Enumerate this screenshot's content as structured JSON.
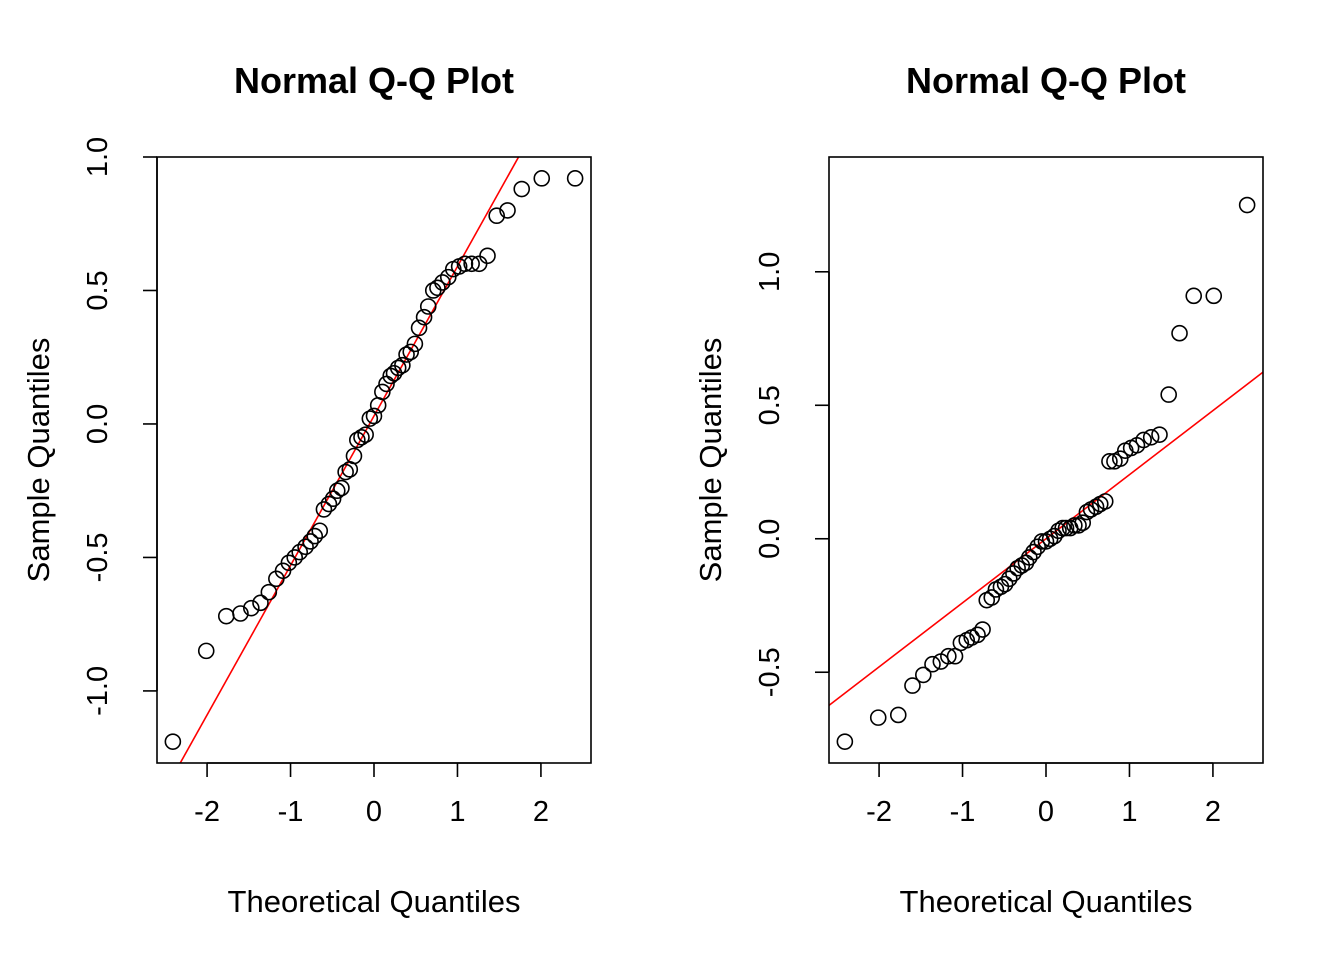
{
  "chart_data": [
    {
      "type": "scatter",
      "title": "Normal Q-Q Plot",
      "xlabel": "Theoretical Quantiles",
      "ylabel": "Sample Quantiles",
      "xlim": [
        -2.6,
        2.6
      ],
      "ylim": [
        -1.27,
        1.0
      ],
      "xticks": [
        -2,
        -1,
        0,
        1,
        2
      ],
      "xtick_labels": [
        "-2",
        "-1",
        "0",
        "1",
        "2"
      ],
      "yticks": [
        -1.0,
        -0.5,
        0.0,
        0.5,
        1.0
      ],
      "ytick_labels": [
        "-1.0",
        "-0.5",
        "0.0",
        "0.5",
        "1.0"
      ],
      "line_color": "#ff0000",
      "qq_line": {
        "intercept": 0.03,
        "slope": 0.56
      },
      "points": {
        "x": [
          -2.41,
          -2.01,
          -1.77,
          -1.6,
          -1.47,
          -1.36,
          -1.26,
          -1.17,
          -1.09,
          -1.02,
          -0.95,
          -0.89,
          -0.82,
          -0.76,
          -0.71,
          -0.65,
          -0.6,
          -0.54,
          -0.49,
          -0.44,
          -0.39,
          -0.34,
          -0.29,
          -0.24,
          -0.2,
          -0.15,
          -0.1,
          -0.05,
          0.0,
          0.05,
          0.1,
          0.15,
          0.2,
          0.24,
          0.29,
          0.34,
          0.39,
          0.44,
          0.49,
          0.54,
          0.6,
          0.65,
          0.71,
          0.76,
          0.82,
          0.89,
          0.95,
          1.02,
          1.09,
          1.17,
          1.26,
          1.36,
          1.47,
          1.6,
          1.77,
          2.01,
          2.41
        ],
        "y": [
          -1.19,
          -0.85,
          -0.72,
          -0.71,
          -0.69,
          -0.67,
          -0.63,
          -0.58,
          -0.55,
          -0.52,
          -0.5,
          -0.48,
          -0.46,
          -0.44,
          -0.42,
          -0.4,
          -0.32,
          -0.3,
          -0.28,
          -0.25,
          -0.24,
          -0.18,
          -0.17,
          -0.12,
          -0.06,
          -0.05,
          -0.04,
          0.02,
          0.03,
          0.07,
          0.12,
          0.15,
          0.18,
          0.19,
          0.21,
          0.22,
          0.26,
          0.27,
          0.3,
          0.36,
          0.4,
          0.44,
          0.5,
          0.51,
          0.53,
          0.55,
          0.58,
          0.59,
          0.6,
          0.6,
          0.6,
          0.63,
          0.78,
          0.8,
          0.88,
          0.92,
          0.92
        ]
      }
    },
    {
      "type": "scatter",
      "title": "Normal Q-Q Plot",
      "xlabel": "Theoretical Quantiles",
      "ylabel": "Sample Quantiles",
      "xlim": [
        -2.6,
        2.6
      ],
      "ylim": [
        -0.84,
        1.43
      ],
      "xticks": [
        -2,
        -1,
        0,
        1,
        2
      ],
      "xtick_labels": [
        "-2",
        "-1",
        "0",
        "1",
        "2"
      ],
      "yticks": [
        -0.5,
        0.0,
        0.5,
        1.0
      ],
      "ytick_labels": [
        "-0.5",
        "0.0",
        "0.5",
        "1.0"
      ],
      "line_color": "#ff0000",
      "qq_line": {
        "intercept": 0.0,
        "slope": 0.24
      },
      "points": {
        "x": [
          -2.41,
          -2.01,
          -1.77,
          -1.6,
          -1.47,
          -1.36,
          -1.26,
          -1.17,
          -1.09,
          -1.02,
          -0.95,
          -0.89,
          -0.82,
          -0.76,
          -0.71,
          -0.65,
          -0.6,
          -0.54,
          -0.49,
          -0.44,
          -0.39,
          -0.34,
          -0.29,
          -0.24,
          -0.2,
          -0.15,
          -0.1,
          -0.05,
          0.0,
          0.05,
          0.1,
          0.15,
          0.2,
          0.24,
          0.29,
          0.34,
          0.39,
          0.44,
          0.49,
          0.54,
          0.6,
          0.65,
          0.71,
          0.76,
          0.82,
          0.89,
          0.95,
          1.02,
          1.09,
          1.17,
          1.26,
          1.36,
          1.47,
          1.6,
          1.77,
          2.01,
          2.41
        ],
        "y": [
          -0.76,
          -0.67,
          -0.66,
          -0.55,
          -0.51,
          -0.47,
          -0.46,
          -0.44,
          -0.44,
          -0.39,
          -0.38,
          -0.37,
          -0.36,
          -0.34,
          -0.23,
          -0.22,
          -0.19,
          -0.18,
          -0.17,
          -0.15,
          -0.13,
          -0.11,
          -0.1,
          -0.09,
          -0.07,
          -0.05,
          -0.03,
          -0.01,
          -0.01,
          0.0,
          0.01,
          0.03,
          0.04,
          0.04,
          0.04,
          0.05,
          0.05,
          0.06,
          0.1,
          0.11,
          0.12,
          0.13,
          0.14,
          0.29,
          0.29,
          0.3,
          0.33,
          0.34,
          0.35,
          0.37,
          0.38,
          0.39,
          0.54,
          0.77,
          0.91,
          0.91,
          1.25
        ]
      }
    }
  ]
}
